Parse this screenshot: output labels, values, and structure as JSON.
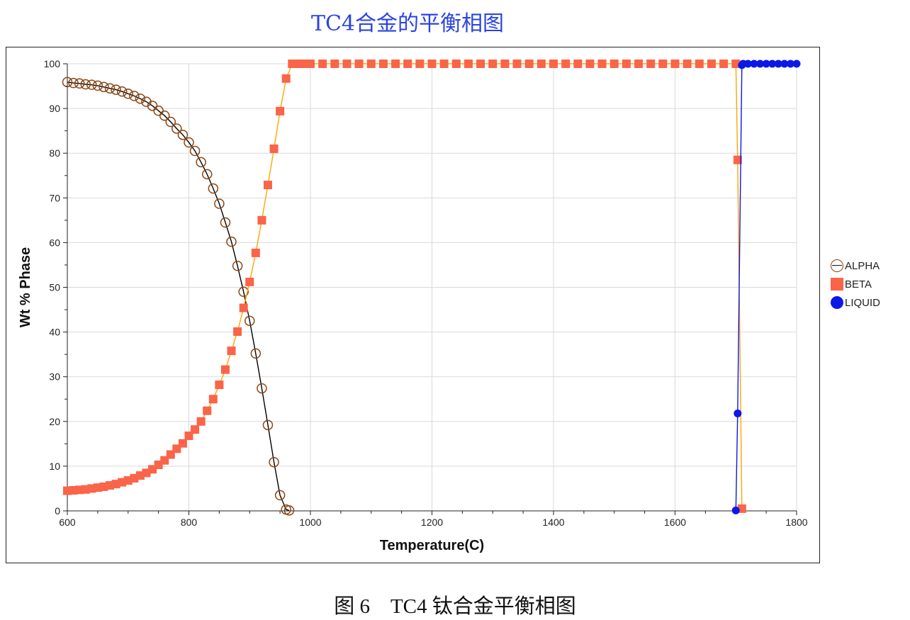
{
  "chart_data": {
    "type": "line",
    "title": "TC4合金的平衡相图",
    "xlabel": "Temperature(C)",
    "ylabel": "Wt % Phase",
    "xlim": [
      600,
      1800
    ],
    "ylim": [
      0,
      100
    ],
    "x_ticks": [
      "600",
      "800",
      "1000",
      "1200",
      "1400",
      "1600",
      "1800"
    ],
    "y_ticks": [
      "0",
      "10",
      "20",
      "30",
      "40",
      "50",
      "60",
      "70",
      "80",
      "90",
      "100"
    ],
    "grid": true,
    "legend_position": "right",
    "series": [
      {
        "name": "ALPHA",
        "marker": "open-circle",
        "line_color": "#000000",
        "marker_color": "#8b4513",
        "x": [
          600,
          610,
          620,
          630,
          640,
          650,
          660,
          670,
          680,
          690,
          700,
          710,
          720,
          730,
          740,
          750,
          760,
          770,
          780,
          790,
          800,
          810,
          820,
          830,
          840,
          850,
          860,
          870,
          880,
          890,
          900,
          910,
          920,
          930,
          940,
          950,
          960,
          965
        ],
        "y": [
          95.9,
          95.7,
          95.6,
          95.4,
          95.3,
          95.1,
          94.8,
          94.5,
          94.2,
          93.8,
          93.3,
          92.8,
          92.2,
          91.5,
          90.6,
          89.5,
          88.4,
          87.0,
          85.5,
          84.1,
          82.4,
          80.5,
          78.0,
          75.3,
          72.1,
          68.7,
          64.5,
          60.2,
          54.8,
          49.0,
          42.5,
          35.2,
          27.4,
          19.2,
          10.9,
          3.5,
          0.3,
          0.1
        ]
      },
      {
        "name": "BETA",
        "marker": "filled-square",
        "line_color": "#ffa500",
        "marker_color": "#fa6449",
        "x": [
          600,
          610,
          620,
          630,
          640,
          650,
          660,
          670,
          680,
          690,
          700,
          710,
          720,
          730,
          740,
          750,
          760,
          770,
          780,
          790,
          800,
          810,
          820,
          830,
          840,
          850,
          860,
          870,
          880,
          890,
          900,
          910,
          920,
          930,
          940,
          950,
          960,
          970,
          980,
          990,
          1000,
          1020,
          1040,
          1060,
          1080,
          1100,
          1120,
          1140,
          1160,
          1180,
          1200,
          1220,
          1240,
          1260,
          1280,
          1300,
          1320,
          1340,
          1360,
          1380,
          1400,
          1420,
          1440,
          1460,
          1480,
          1500,
          1520,
          1540,
          1560,
          1580,
          1600,
          1620,
          1640,
          1660,
          1680,
          1700,
          1703,
          1710
        ],
        "y": [
          4.5,
          4.6,
          4.7,
          4.8,
          5.0,
          5.2,
          5.4,
          5.7,
          6.0,
          6.4,
          6.8,
          7.3,
          7.9,
          8.5,
          9.3,
          10.3,
          11.3,
          12.6,
          13.9,
          15.1,
          16.8,
          18.2,
          20.0,
          22.4,
          25.0,
          28.2,
          31.6,
          35.8,
          40.1,
          45.4,
          51.2,
          57.7,
          65.0,
          72.9,
          81.0,
          89.4,
          96.7,
          100,
          100,
          100,
          100,
          100,
          100,
          100,
          100,
          100,
          100,
          100,
          100,
          100,
          100,
          100,
          100,
          100,
          100,
          100,
          100,
          100,
          100,
          100,
          100,
          100,
          100,
          100,
          100,
          100,
          100,
          100,
          100,
          100,
          100,
          100,
          100,
          100,
          100,
          100,
          78.5,
          0.5
        ]
      },
      {
        "name": "LIQUID",
        "marker": "filled-circle",
        "line_color": "#0c18e8",
        "marker_color": "#0c18e8",
        "x": [
          1700,
          1703,
          1710,
          1712,
          1720,
          1730,
          1740,
          1750,
          1760,
          1770,
          1780,
          1790,
          1800
        ],
        "y": [
          0.1,
          21.8,
          99.7,
          100,
          100,
          100,
          100,
          100,
          100,
          100,
          100,
          100,
          100
        ]
      }
    ]
  },
  "caption": "图 6　TC4 钛合金平衡相图"
}
